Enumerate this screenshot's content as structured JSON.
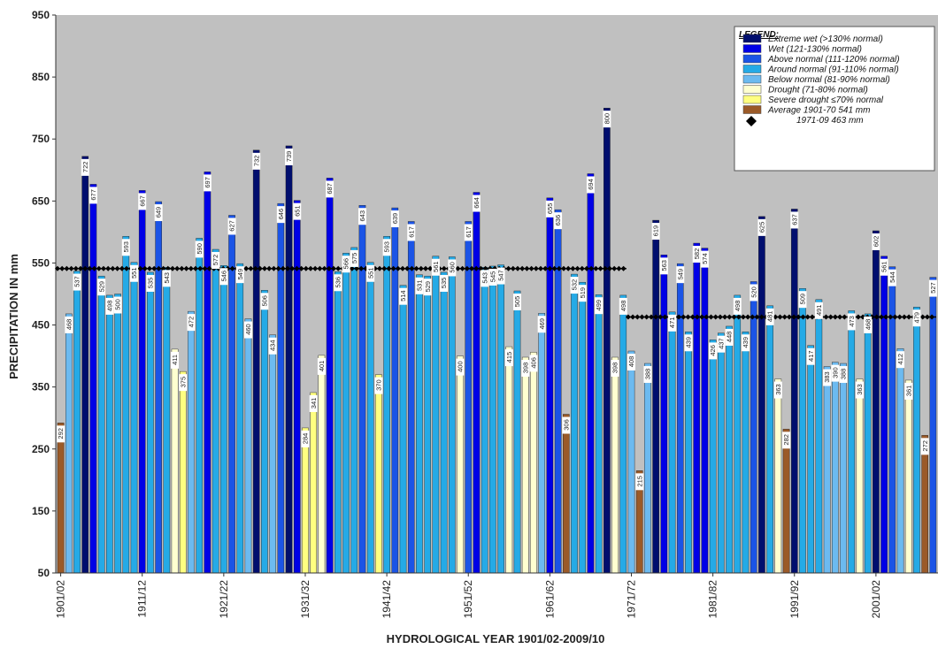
{
  "chart_data": {
    "type": "bar",
    "title": "",
    "xlabel": "HYDROLOGICAL YEAR 1901/02-2009/10",
    "ylabel": "PRECIPITATION IN mm",
    "ylim": [
      50,
      950
    ],
    "yticks": [
      50,
      150,
      250,
      350,
      450,
      550,
      650,
      750,
      850,
      950
    ],
    "grid": false,
    "background": "#c0c0c0",
    "x_tick_labels": [
      "1901/02",
      "1911/12",
      "1921/22",
      "1931/32",
      "1941/42",
      "1951/52",
      "1961/62",
      "1971/72",
      "1981/82",
      "1991/92",
      "2001/02"
    ],
    "x_tick_every": 10,
    "values": [
      292,
      468,
      537,
      722,
      677,
      529,
      498,
      500,
      593,
      551,
      667,
      535,
      649,
      543,
      411,
      375,
      472,
      590,
      697,
      572,
      546,
      627,
      549,
      460,
      732,
      506,
      434,
      646,
      739,
      651,
      284,
      341,
      401,
      687,
      536,
      566,
      575,
      643,
      551,
      370,
      593,
      639,
      514,
      617,
      531,
      529,
      561,
      535,
      560,
      400,
      617,
      664,
      543,
      545,
      547,
      415,
      505,
      398,
      406,
      469,
      655,
      636,
      306,
      532,
      519,
      694,
      499,
      800,
      398,
      498,
      408,
      215,
      388,
      619,
      563,
      471,
      549,
      439,
      582,
      574,
      426,
      437,
      448,
      498,
      439,
      520,
      625,
      481,
      363,
      282,
      637,
      509,
      417,
      491,
      383,
      390,
      388,
      473,
      363,
      468,
      602,
      561,
      544,
      412,
      361,
      479,
      272,
      527
    ],
    "value_labels": [
      "292",
      "468",
      "537",
      "722",
      "677",
      "529",
      "498",
      "500",
      "593",
      "551",
      "667",
      "535",
      "649",
      "543",
      "411",
      "375",
      "472",
      "590",
      "697",
      "572",
      "546",
      "627",
      "549",
      "460",
      "732",
      "506",
      "434",
      "646",
      "739",
      "651",
      "284",
      "341",
      "401",
      "687",
      "536",
      "566",
      "575",
      "643",
      "551",
      "370",
      "593",
      "639",
      "514",
      "617",
      "531",
      "529",
      "561",
      "535",
      "560",
      "400",
      "617",
      "664",
      "543",
      "545",
      "547",
      "415",
      "505",
      "398",
      "406",
      "469",
      "655",
      "636",
      "306",
      "532",
      "519",
      "694",
      "499",
      "800",
      "398",
      "498",
      "408",
      "215",
      "388",
      "619",
      "563",
      "471",
      "549",
      "439",
      "582",
      "574",
      "426",
      "437",
      "448",
      "498",
      "439",
      "520",
      "625",
      "481",
      "363",
      "282",
      "637",
      "509",
      "417",
      "491",
      "383",
      "390",
      "388",
      "473",
      "363",
      "468",
      "602",
      "561",
      "544",
      "412",
      "361",
      "479",
      "272",
      "527"
    ],
    "categories_legend": [
      {
        "key": "extreme_wet",
        "label": "Extreme wet (>130% normal)",
        "color": "#000e6e"
      },
      {
        "key": "wet",
        "label": "Wet (121-130% normal)",
        "color": "#0000e6"
      },
      {
        "key": "above_normal",
        "label": "Above normal (111-120% normal)",
        "color": "#1b54e6"
      },
      {
        "key": "around_normal",
        "label": "Around normal (91-110% normal)",
        "color": "#25aae6"
      },
      {
        "key": "below_normal",
        "label": "Below normal (81-90% normal)",
        "color": "#6cbaf0"
      },
      {
        "key": "drought",
        "label": "Drought (71-80% normal)",
        "color": "#ffffd0"
      },
      {
        "key": "severe_drought",
        "label": "Severe drought ≤70% normal",
        "color": "#ffff80"
      },
      {
        "key": "average",
        "label": "Average 1901-70 541 mm",
        "color": "#9b5a28"
      }
    ],
    "legend_title": "LEGEND:",
    "legend_marker_label": "1971-09 463 mm",
    "legend_placement": "top-right",
    "averages": [
      {
        "label": "Average 1901-70 541 mm",
        "value": 541,
        "from_index": 0,
        "to_index": 69
      },
      {
        "label": "1971-09 463 mm",
        "value": 463,
        "from_index": 70,
        "to_index": 107
      }
    ],
    "marker_color": "#000000"
  }
}
